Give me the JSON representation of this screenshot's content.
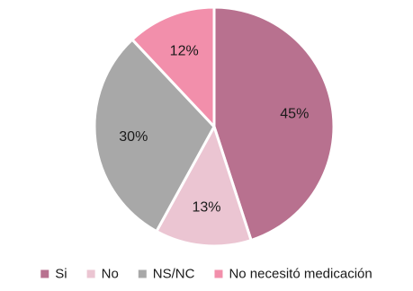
{
  "chart_data": {
    "type": "pie",
    "categories": [
      "Si",
      "No",
      "NS/NC",
      "No necesitó medicación"
    ],
    "values": [
      45,
      13,
      30,
      12
    ],
    "labels": [
      "45%",
      "13%",
      "30%",
      "12%"
    ],
    "colors": [
      "#b8718f",
      "#ebc5d2",
      "#a8a8a8",
      "#f28fab"
    ],
    "legend_position": "bottom",
    "start": "top",
    "direction": "clockwise"
  }
}
